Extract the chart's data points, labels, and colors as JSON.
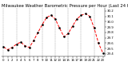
{
  "title": "Milwaukee Weather Barometric Pressure per Hour (Last 24 Hours)",
  "hours": [
    0,
    1,
    2,
    3,
    4,
    5,
    6,
    7,
    8,
    9,
    10,
    11,
    12,
    13,
    14,
    15,
    16,
    17,
    18,
    19,
    20,
    21,
    22,
    23
  ],
  "pressure": [
    29.53,
    29.48,
    29.52,
    29.58,
    29.62,
    29.55,
    29.52,
    29.65,
    29.8,
    29.95,
    30.08,
    30.12,
    30.05,
    29.88,
    29.72,
    29.78,
    29.92,
    30.05,
    30.12,
    30.15,
    30.1,
    29.88,
    29.6,
    29.42
  ],
  "ylim": [
    29.35,
    30.25
  ],
  "ytick_values": [
    29.4,
    29.5,
    29.6,
    29.7,
    29.8,
    29.9,
    30.0,
    30.1,
    30.2
  ],
  "ytick_labels": [
    "29.4",
    "29.5",
    "29.6",
    "29.7",
    "29.8",
    "29.9",
    "30.0",
    "30.1",
    "30.2"
  ],
  "xtick_positions": [
    0,
    1,
    2,
    3,
    4,
    5,
    6,
    7,
    8,
    9,
    10,
    11,
    12,
    13,
    14,
    15,
    16,
    17,
    18,
    19,
    20,
    21,
    22,
    23
  ],
  "grid_positions": [
    0,
    3,
    6,
    9,
    12,
    15,
    18,
    21
  ],
  "line_color": "#ff0000",
  "marker_color": "#000000",
  "bg_color": "#ffffff",
  "grid_color": "#888888",
  "title_fontsize": 3.8,
  "tick_fontsize": 2.8,
  "line_width": 0.7,
  "marker_size": 1.8
}
